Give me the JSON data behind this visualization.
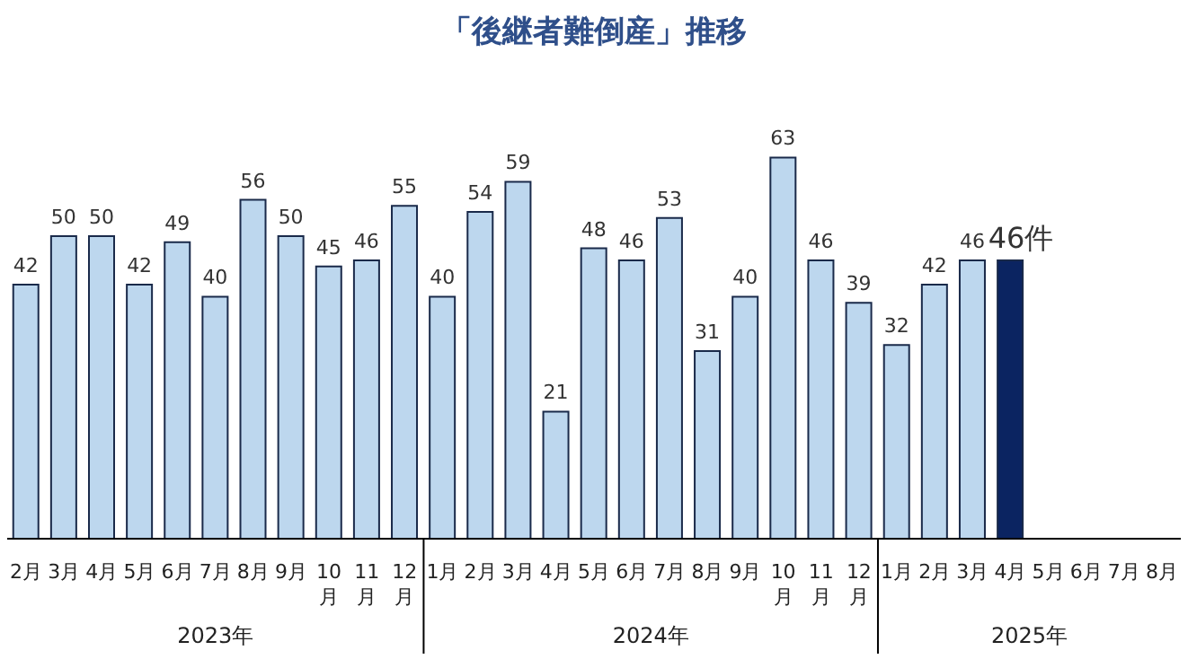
{
  "chart_data": {
    "type": "bar",
    "title": "「後継者難倒産」推移",
    "categories": [
      "2月",
      "3月",
      "4月",
      "5月",
      "6月",
      "7月",
      "8月",
      "9月",
      "10月",
      "11月",
      "12月",
      "1月",
      "2月",
      "3月",
      "4月",
      "5月",
      "6月",
      "7月",
      "8月",
      "9月",
      "10月",
      "11月",
      "12月",
      "1月",
      "2月",
      "3月",
      "4月",
      "5月",
      "6月",
      "7月",
      "8月"
    ],
    "values": [
      42,
      50,
      50,
      42,
      49,
      40,
      56,
      50,
      45,
      46,
      55,
      40,
      54,
      59,
      21,
      48,
      46,
      53,
      31,
      40,
      63,
      46,
      39,
      32,
      42,
      46,
      46,
      null,
      null,
      null,
      null
    ],
    "value_labels": [
      "42",
      "50",
      "50",
      "42",
      "49",
      "40",
      "56",
      "50",
      "45",
      "46",
      "55",
      "40",
      "54",
      "59",
      "21",
      "48",
      "46",
      "53",
      "31",
      "40",
      "63",
      "46",
      "39",
      "32",
      "42",
      "46",
      "46件",
      null,
      null,
      null,
      null
    ],
    "colors": [
      "#bdd7ee",
      "#bdd7ee",
      "#bdd7ee",
      "#bdd7ee",
      "#bdd7ee",
      "#bdd7ee",
      "#bdd7ee",
      "#bdd7ee",
      "#bdd7ee",
      "#bdd7ee",
      "#bdd7ee",
      "#bdd7ee",
      "#bdd7ee",
      "#bdd7ee",
      "#bdd7ee",
      "#bdd7ee",
      "#bdd7ee",
      "#bdd7ee",
      "#bdd7ee",
      "#bdd7ee",
      "#bdd7ee",
      "#bdd7ee",
      "#bdd7ee",
      "#bdd7ee",
      "#bdd7ee",
      "#bdd7ee",
      "#0b2461",
      "#bdd7ee",
      "#bdd7ee",
      "#bdd7ee",
      "#bdd7ee"
    ],
    "annotations": [
      "2023年",
      "2024年",
      "2025年"
    ],
    "grid": false,
    "legend": false
  }
}
